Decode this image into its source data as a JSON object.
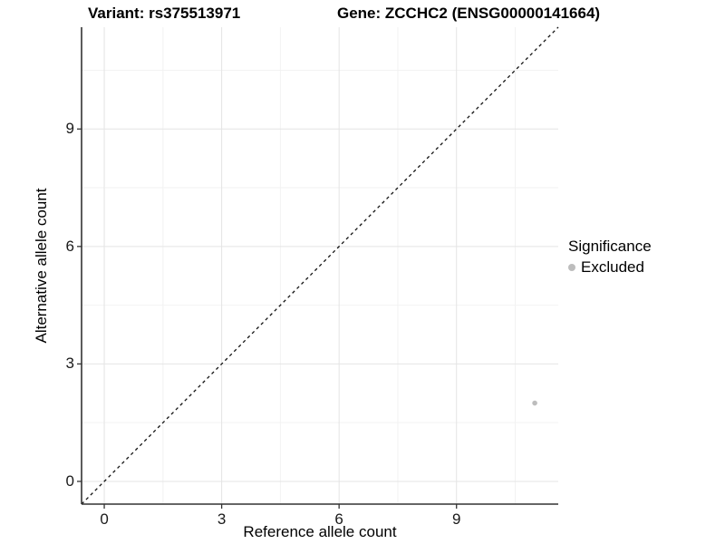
{
  "titles": {
    "variant": "Variant: rs375513971",
    "gene": "Gene: ZCCHC2 (ENSG00000141664)"
  },
  "chart_data": {
    "type": "scatter",
    "xlabel": "Reference allele count",
    "ylabel": "Alternative allele count",
    "xlim": [
      -0.58,
      11.6
    ],
    "ylim": [
      -0.58,
      11.6
    ],
    "xticks": [
      0,
      3,
      6,
      9
    ],
    "yticks": [
      0,
      3,
      6,
      9
    ],
    "minor_ticks": [
      1.5,
      4.5,
      7.5,
      10.5
    ],
    "grid": true,
    "legend_position": "right",
    "series": [
      {
        "name": "Excluded",
        "color": "#bdbdbd",
        "points": [
          {
            "x": 11,
            "y": 2
          }
        ]
      }
    ],
    "reference_line": {
      "type": "identity",
      "style": "dashed",
      "color": "#111111"
    }
  },
  "legend": {
    "title": "Significance",
    "items": [
      {
        "label": "Excluded",
        "color": "#bdbdbd"
      }
    ]
  },
  "colors": {
    "background": "#ffffff",
    "axis_line": "#333333",
    "major_grid": "#e4e4e4",
    "minor_grid": "#f2f2f2",
    "tick_text": "#1a1a1a",
    "point": "#bdbdbd"
  }
}
